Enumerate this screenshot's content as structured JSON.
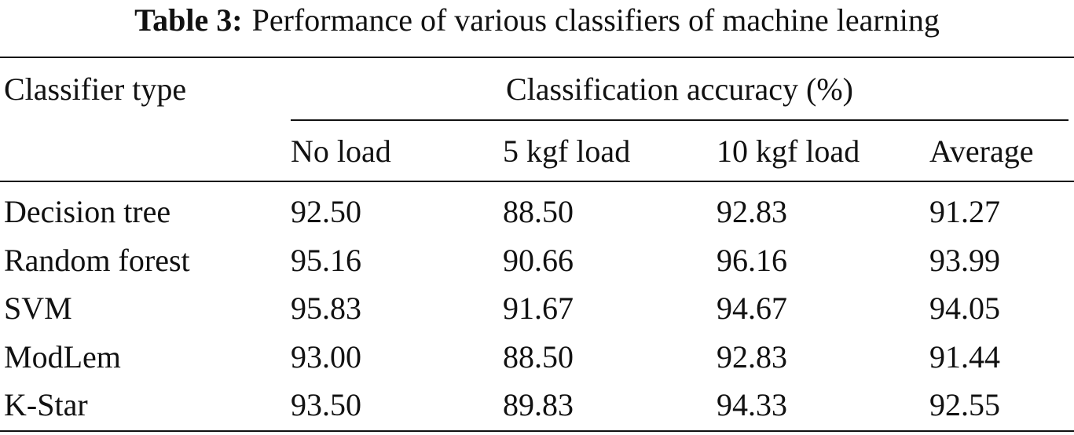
{
  "title": {
    "label": "Table 3:",
    "text": "Performance of various classifiers of machine learning"
  },
  "table": {
    "row_header": "Classifier type",
    "group_header": "Classification accuracy (%)",
    "columns": [
      "No load",
      "5 kgf load",
      "10 kgf load",
      "Average"
    ],
    "rows": [
      [
        "Decision tree",
        "92.50",
        "88.50",
        "92.83",
        "91.27"
      ],
      [
        "Random forest",
        "95.16",
        "90.66",
        "96.16",
        "93.99"
      ],
      [
        "SVM",
        "95.83",
        "91.67",
        "94.67",
        "94.05"
      ],
      [
        "ModLem",
        "93.00",
        "88.50",
        "92.83",
        "91.44"
      ],
      [
        "K-Star",
        "93.50",
        "89.83",
        "94.33",
        "92.55"
      ]
    ]
  }
}
